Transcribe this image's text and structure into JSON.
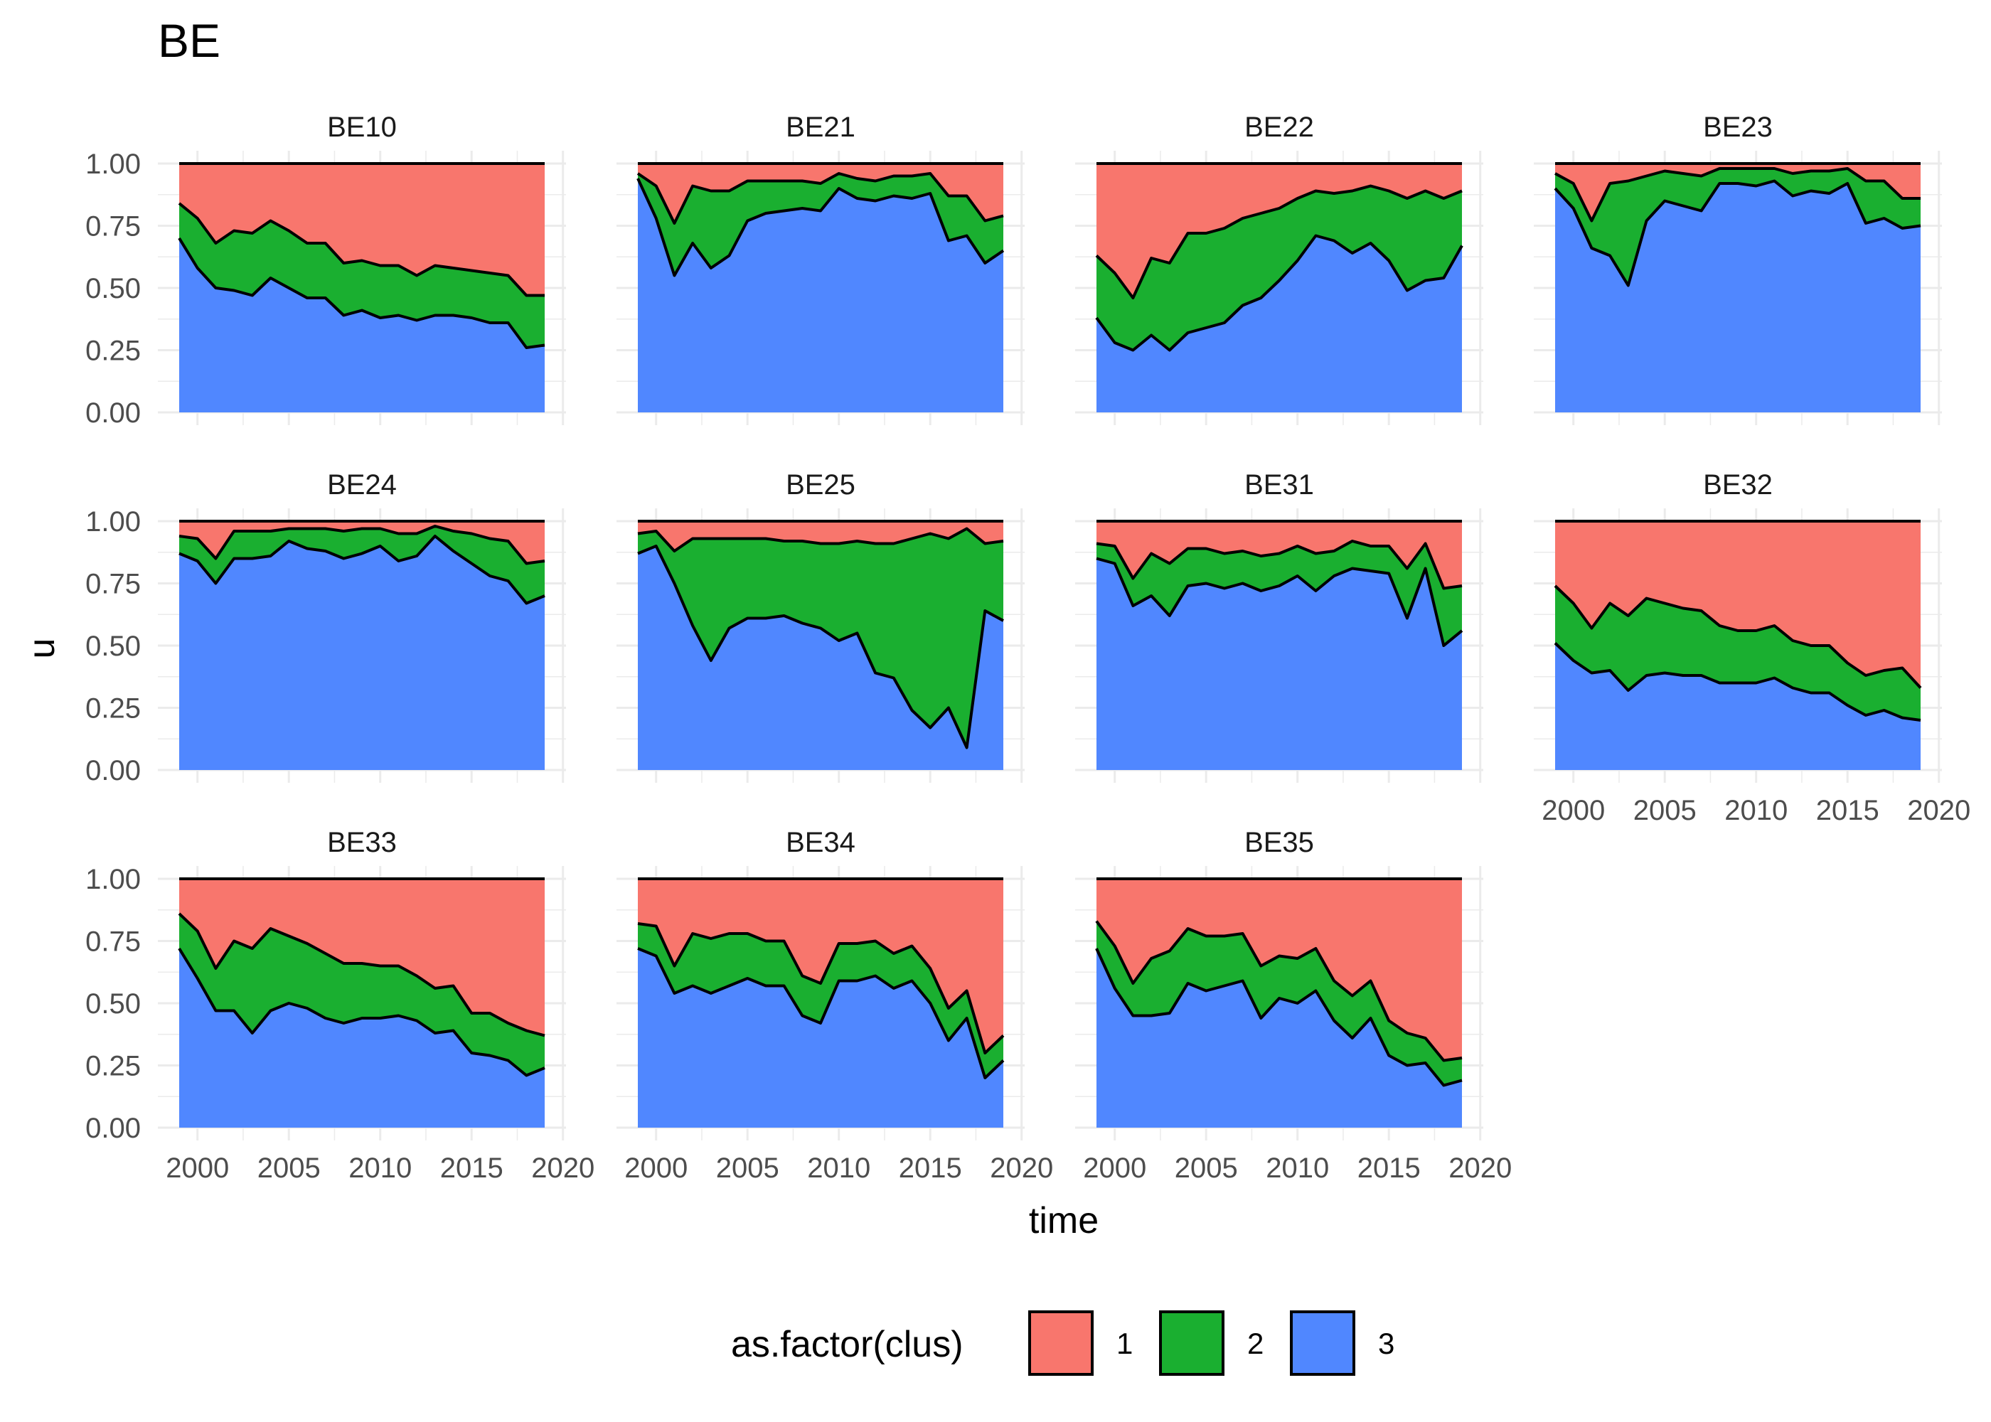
{
  "chart_data": {
    "type": "area",
    "title": "BE",
    "xlabel": "time",
    "ylabel": "u",
    "xlim": [
      1999,
      2019
    ],
    "ylim": [
      0,
      1
    ],
    "x_ticks": [
      "2000",
      "2005",
      "2010",
      "2015",
      "2020"
    ],
    "y_ticks": [
      "0.00",
      "0.25",
      "0.50",
      "0.75",
      "1.00"
    ],
    "grid": true,
    "legend": {
      "title": "as.factor(clus)",
      "position": "bottom",
      "entries": [
        {
          "label": "1",
          "color": "#F8766D"
        },
        {
          "label": "2",
          "color": "#1AAF30"
        },
        {
          "label": "3",
          "color": "#5087FF"
        }
      ]
    },
    "x": [
      1999,
      2000,
      2001,
      2002,
      2003,
      2004,
      2005,
      2006,
      2007,
      2008,
      2009,
      2010,
      2011,
      2012,
      2013,
      2014,
      2015,
      2016,
      2017,
      2018,
      2019
    ],
    "panels": [
      {
        "name": "BE10",
        "cluster3": [
          0.7,
          0.58,
          0.5,
          0.49,
          0.47,
          0.54,
          0.5,
          0.46,
          0.46,
          0.39,
          0.41,
          0.38,
          0.39,
          0.37,
          0.39,
          0.39,
          0.38,
          0.36,
          0.36,
          0.26,
          0.27
        ],
        "cluster2_3": [
          0.84,
          0.78,
          0.68,
          0.73,
          0.72,
          0.77,
          0.73,
          0.68,
          0.68,
          0.6,
          0.61,
          0.59,
          0.59,
          0.55,
          0.59,
          0.58,
          0.57,
          0.56,
          0.55,
          0.47,
          0.47
        ]
      },
      {
        "name": "BE21",
        "cluster3": [
          0.94,
          0.78,
          0.55,
          0.68,
          0.58,
          0.63,
          0.77,
          0.8,
          0.81,
          0.82,
          0.81,
          0.9,
          0.86,
          0.85,
          0.87,
          0.86,
          0.88,
          0.69,
          0.71,
          0.6,
          0.65
        ],
        "cluster2_3": [
          0.96,
          0.91,
          0.76,
          0.91,
          0.89,
          0.89,
          0.93,
          0.93,
          0.93,
          0.93,
          0.92,
          0.96,
          0.94,
          0.93,
          0.95,
          0.95,
          0.96,
          0.87,
          0.87,
          0.77,
          0.79
        ]
      },
      {
        "name": "BE22",
        "cluster3": [
          0.38,
          0.28,
          0.25,
          0.31,
          0.25,
          0.32,
          0.34,
          0.36,
          0.43,
          0.46,
          0.53,
          0.61,
          0.71,
          0.69,
          0.64,
          0.68,
          0.61,
          0.49,
          0.53,
          0.54,
          0.67
        ],
        "cluster2_3": [
          0.63,
          0.56,
          0.46,
          0.62,
          0.6,
          0.72,
          0.72,
          0.74,
          0.78,
          0.8,
          0.82,
          0.86,
          0.89,
          0.88,
          0.89,
          0.91,
          0.89,
          0.86,
          0.89,
          0.86,
          0.89
        ]
      },
      {
        "name": "BE23",
        "cluster3": [
          0.9,
          0.82,
          0.66,
          0.63,
          0.51,
          0.77,
          0.85,
          0.83,
          0.81,
          0.92,
          0.92,
          0.91,
          0.93,
          0.87,
          0.89,
          0.88,
          0.92,
          0.76,
          0.78,
          0.74,
          0.75
        ],
        "cluster2_3": [
          0.96,
          0.92,
          0.77,
          0.92,
          0.93,
          0.95,
          0.97,
          0.96,
          0.95,
          0.98,
          0.98,
          0.98,
          0.98,
          0.96,
          0.97,
          0.97,
          0.98,
          0.93,
          0.93,
          0.86,
          0.86
        ]
      },
      {
        "name": "BE24",
        "cluster3": [
          0.87,
          0.84,
          0.75,
          0.85,
          0.85,
          0.86,
          0.92,
          0.89,
          0.88,
          0.85,
          0.87,
          0.9,
          0.84,
          0.86,
          0.94,
          0.88,
          0.83,
          0.78,
          0.76,
          0.67,
          0.7
        ],
        "cluster2_3": [
          0.94,
          0.93,
          0.85,
          0.96,
          0.96,
          0.96,
          0.97,
          0.97,
          0.97,
          0.96,
          0.97,
          0.97,
          0.95,
          0.95,
          0.98,
          0.96,
          0.95,
          0.93,
          0.92,
          0.83,
          0.84
        ]
      },
      {
        "name": "BE25",
        "cluster3": [
          0.87,
          0.9,
          0.75,
          0.58,
          0.44,
          0.57,
          0.61,
          0.61,
          0.62,
          0.59,
          0.57,
          0.52,
          0.55,
          0.39,
          0.37,
          0.24,
          0.17,
          0.25,
          0.09,
          0.64,
          0.6
        ],
        "cluster2_3": [
          0.95,
          0.96,
          0.88,
          0.93,
          0.93,
          0.93,
          0.93,
          0.93,
          0.92,
          0.92,
          0.91,
          0.91,
          0.92,
          0.91,
          0.91,
          0.93,
          0.95,
          0.93,
          0.97,
          0.91,
          0.92
        ]
      },
      {
        "name": "BE31",
        "cluster3": [
          0.85,
          0.83,
          0.66,
          0.7,
          0.62,
          0.74,
          0.75,
          0.73,
          0.75,
          0.72,
          0.74,
          0.78,
          0.72,
          0.78,
          0.81,
          0.8,
          0.79,
          0.61,
          0.81,
          0.5,
          0.56
        ],
        "cluster2_3": [
          0.91,
          0.9,
          0.77,
          0.87,
          0.83,
          0.89,
          0.89,
          0.87,
          0.88,
          0.86,
          0.87,
          0.9,
          0.87,
          0.88,
          0.92,
          0.9,
          0.9,
          0.81,
          0.91,
          0.73,
          0.74
        ]
      },
      {
        "name": "BE32",
        "cluster3": [
          0.51,
          0.44,
          0.39,
          0.4,
          0.32,
          0.38,
          0.39,
          0.38,
          0.38,
          0.35,
          0.35,
          0.35,
          0.37,
          0.33,
          0.31,
          0.31,
          0.26,
          0.22,
          0.24,
          0.21,
          0.2
        ],
        "cluster2_3": [
          0.74,
          0.67,
          0.57,
          0.67,
          0.62,
          0.69,
          0.67,
          0.65,
          0.64,
          0.58,
          0.56,
          0.56,
          0.58,
          0.52,
          0.5,
          0.5,
          0.43,
          0.38,
          0.4,
          0.41,
          0.33
        ]
      },
      {
        "name": "BE33",
        "cluster3": [
          0.72,
          0.6,
          0.47,
          0.47,
          0.38,
          0.47,
          0.5,
          0.48,
          0.44,
          0.42,
          0.44,
          0.44,
          0.45,
          0.43,
          0.38,
          0.39,
          0.3,
          0.29,
          0.27,
          0.21,
          0.24
        ],
        "cluster2_3": [
          0.86,
          0.79,
          0.64,
          0.75,
          0.72,
          0.8,
          0.77,
          0.74,
          0.7,
          0.66,
          0.66,
          0.65,
          0.65,
          0.61,
          0.56,
          0.57,
          0.46,
          0.46,
          0.42,
          0.39,
          0.37
        ]
      },
      {
        "name": "BE34",
        "cluster3": [
          0.72,
          0.69,
          0.54,
          0.57,
          0.54,
          0.57,
          0.6,
          0.57,
          0.57,
          0.45,
          0.42,
          0.59,
          0.59,
          0.61,
          0.56,
          0.59,
          0.5,
          0.35,
          0.44,
          0.2,
          0.27
        ],
        "cluster2_3": [
          0.82,
          0.81,
          0.65,
          0.78,
          0.76,
          0.78,
          0.78,
          0.75,
          0.75,
          0.61,
          0.58,
          0.74,
          0.74,
          0.75,
          0.7,
          0.73,
          0.64,
          0.48,
          0.55,
          0.3,
          0.37
        ]
      },
      {
        "name": "BE35",
        "cluster3": [
          0.72,
          0.56,
          0.45,
          0.45,
          0.46,
          0.58,
          0.55,
          0.57,
          0.59,
          0.44,
          0.52,
          0.5,
          0.55,
          0.43,
          0.36,
          0.44,
          0.29,
          0.25,
          0.26,
          0.17,
          0.19
        ],
        "cluster2_3": [
          0.83,
          0.73,
          0.58,
          0.68,
          0.71,
          0.8,
          0.77,
          0.77,
          0.78,
          0.65,
          0.69,
          0.68,
          0.72,
          0.59,
          0.53,
          0.59,
          0.43,
          0.38,
          0.36,
          0.27,
          0.28
        ]
      }
    ]
  }
}
